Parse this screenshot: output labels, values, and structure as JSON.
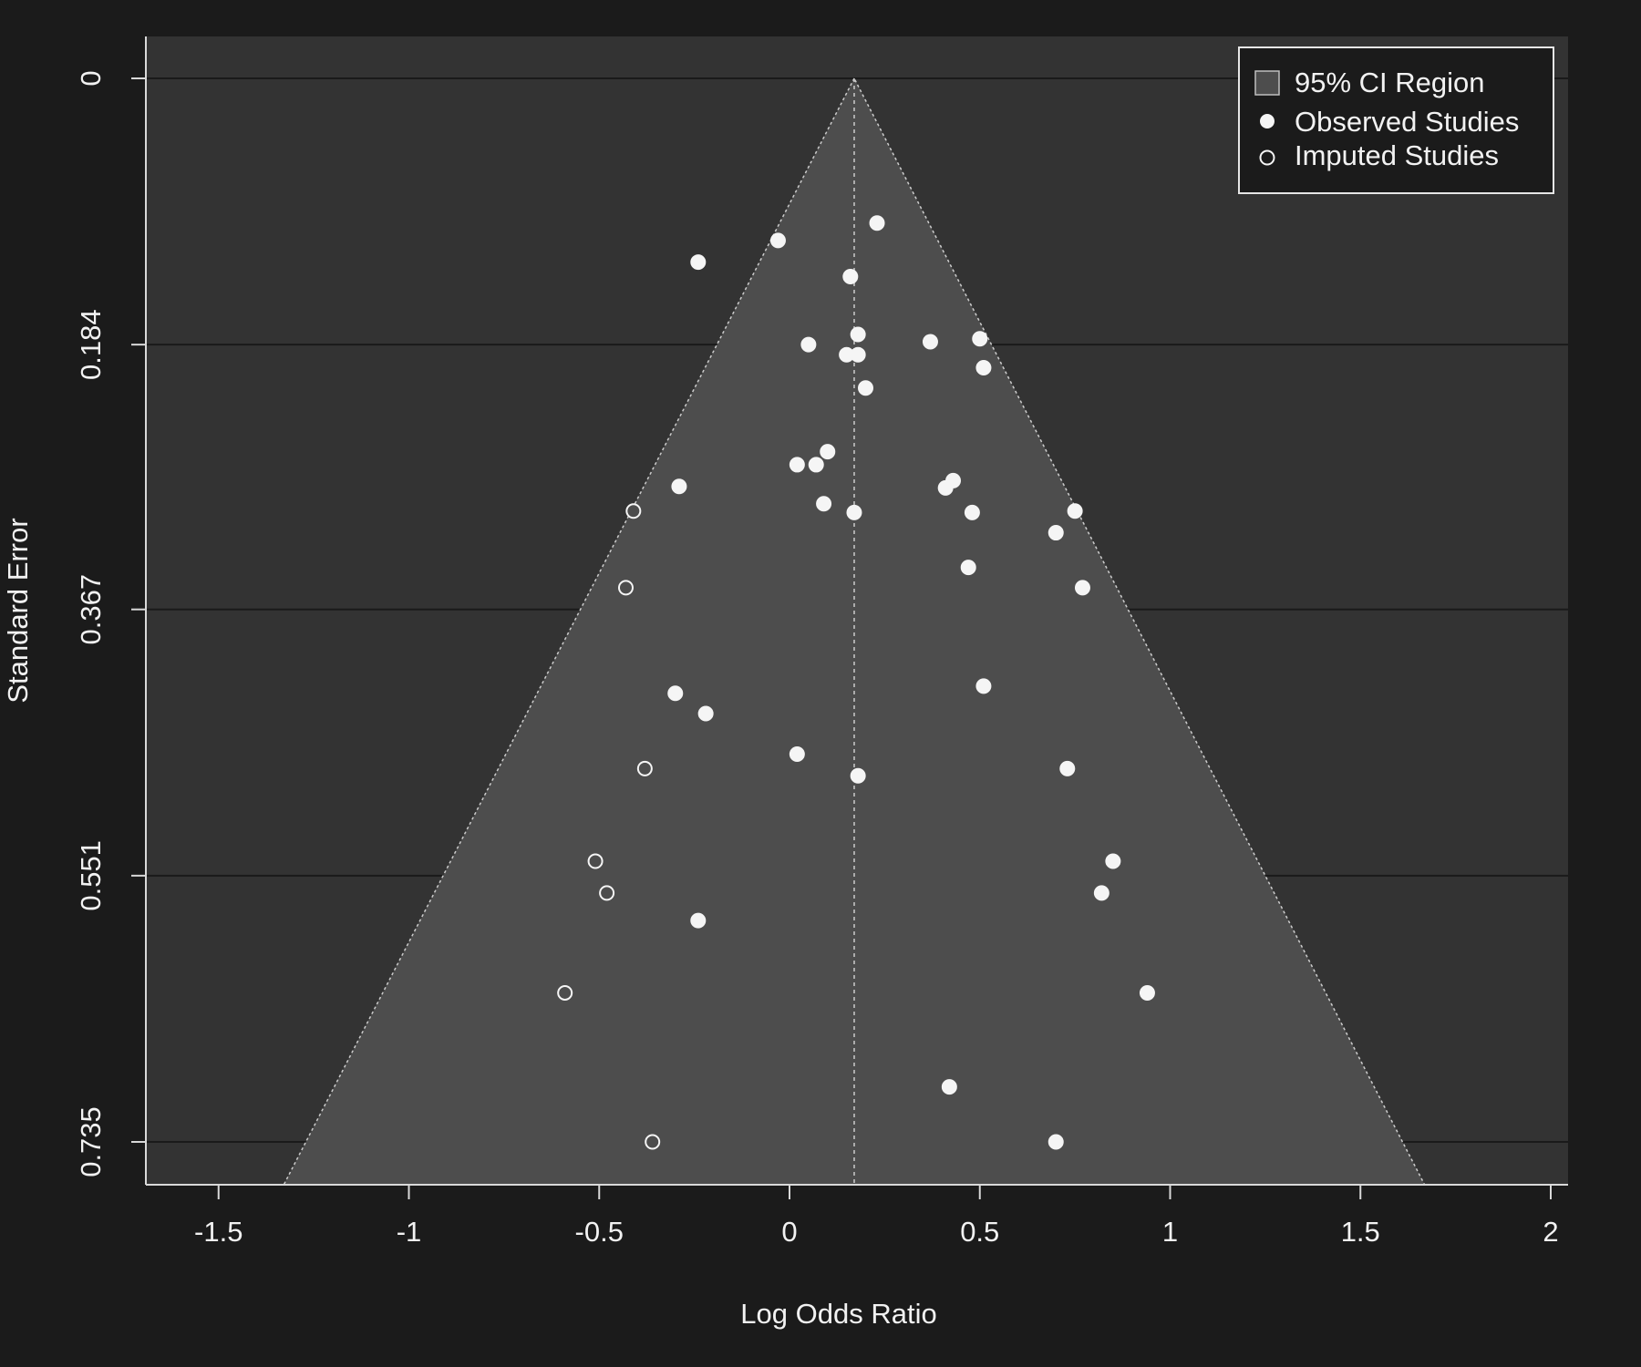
{
  "chart_data": {
    "type": "scatter",
    "subtype": "funnel-plot",
    "xlabel": "Log Odds Ratio",
    "ylabel": "Standard Error",
    "xlim": [
      -1.7,
      2.04
    ],
    "ylim_reversed": [
      0,
      0.765
    ],
    "x_ticks": [
      -1.5,
      -1,
      -0.5,
      0,
      0.5,
      1,
      1.5,
      2
    ],
    "x_tick_labels": [
      "-1.5",
      "-1",
      "-0.5",
      "0",
      "0.5",
      "1",
      "1.5",
      "2"
    ],
    "y_ticks": [
      0,
      0.184,
      0.367,
      0.551,
      0.735
    ],
    "y_tick_labels": [
      "0",
      "0.184",
      "0.367",
      "0.551",
      "0.735"
    ],
    "horizontal_gridlines": true,
    "pooled_estimate": 0.17,
    "ci_multiplier": 1.96,
    "legend": {
      "placement": "top-right",
      "entries": [
        "95% CI Region",
        "Observed Studies",
        "Imputed Studies"
      ]
    },
    "colors": {
      "background": "#1b1b1b",
      "panel": "#333333",
      "ci_region": "#4d4d4d",
      "points": "#f5f5f5",
      "gridline": "#1a1a1a",
      "funnel_edge": "#cccccc"
    },
    "series": [
      {
        "name": "Observed Studies",
        "marker": "filled-circle",
        "points": [
          {
            "x": 0.23,
            "y": 0.1
          },
          {
            "x": -0.03,
            "y": 0.112
          },
          {
            "x": -0.24,
            "y": 0.127
          },
          {
            "x": 0.16,
            "y": 0.137
          },
          {
            "x": 0.18,
            "y": 0.177
          },
          {
            "x": 0.05,
            "y": 0.184
          },
          {
            "x": 0.37,
            "y": 0.182
          },
          {
            "x": 0.5,
            "y": 0.18
          },
          {
            "x": 0.15,
            "y": 0.191
          },
          {
            "x": 0.18,
            "y": 0.191
          },
          {
            "x": 0.51,
            "y": 0.2
          },
          {
            "x": 0.2,
            "y": 0.214
          },
          {
            "x": 0.1,
            "y": 0.258
          },
          {
            "x": 0.02,
            "y": 0.267
          },
          {
            "x": 0.07,
            "y": 0.267
          },
          {
            "x": -0.29,
            "y": 0.282
          },
          {
            "x": 0.43,
            "y": 0.278
          },
          {
            "x": 0.41,
            "y": 0.283
          },
          {
            "x": 0.09,
            "y": 0.294
          },
          {
            "x": 0.17,
            "y": 0.3
          },
          {
            "x": 0.48,
            "y": 0.3
          },
          {
            "x": 0.75,
            "y": 0.299
          },
          {
            "x": 0.7,
            "y": 0.314
          },
          {
            "x": 0.47,
            "y": 0.338
          },
          {
            "x": 0.77,
            "y": 0.352
          },
          {
            "x": 0.51,
            "y": 0.42
          },
          {
            "x": -0.3,
            "y": 0.425
          },
          {
            "x": -0.22,
            "y": 0.439
          },
          {
            "x": 0.02,
            "y": 0.467
          },
          {
            "x": 0.18,
            "y": 0.482
          },
          {
            "x": 0.73,
            "y": 0.477
          },
          {
            "x": 0.85,
            "y": 0.541
          },
          {
            "x": 0.82,
            "y": 0.563
          },
          {
            "x": -0.24,
            "y": 0.582
          },
          {
            "x": 0.94,
            "y": 0.632
          },
          {
            "x": 0.42,
            "y": 0.697
          },
          {
            "x": 0.7,
            "y": 0.735
          }
        ]
      },
      {
        "name": "Imputed Studies",
        "marker": "open-circle",
        "points": [
          {
            "x": -0.41,
            "y": 0.299
          },
          {
            "x": -0.43,
            "y": 0.352
          },
          {
            "x": -0.38,
            "y": 0.477
          },
          {
            "x": -0.51,
            "y": 0.541
          },
          {
            "x": -0.48,
            "y": 0.563
          },
          {
            "x": -0.59,
            "y": 0.632
          },
          {
            "x": -0.36,
            "y": 0.735
          }
        ]
      }
    ]
  }
}
